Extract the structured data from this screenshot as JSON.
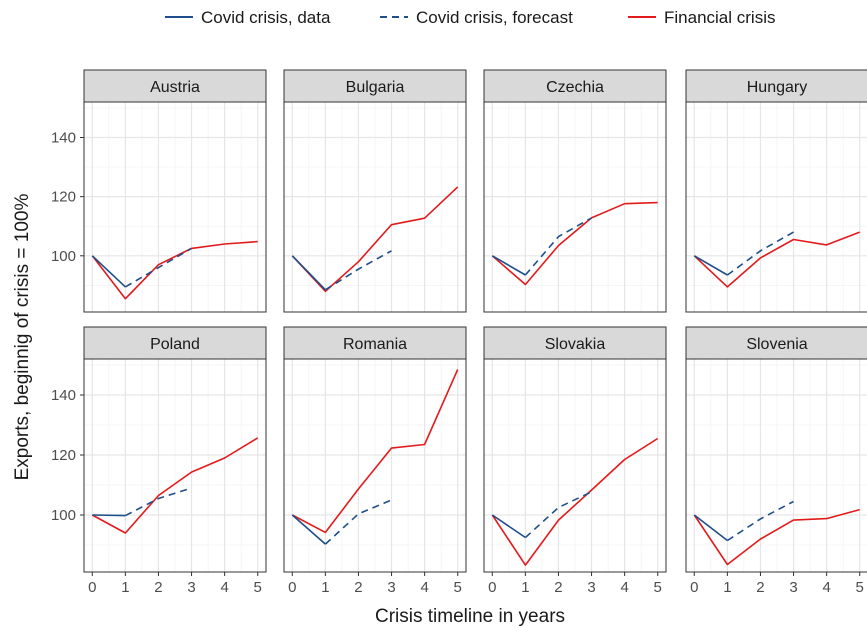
{
  "chart_data": {
    "type": "line",
    "xlabel": "Crisis timeline in years",
    "ylabel": "Exports, beginnig of crisis = 100%",
    "x_ticks": [
      0,
      1,
      2,
      3,
      4,
      5
    ],
    "y_ticks": [
      100,
      120,
      140
    ],
    "xlim": [
      -0.25,
      5.25
    ],
    "ylim": [
      81,
      152
    ],
    "grid": true,
    "legend_position": "top",
    "legend": [
      {
        "key": "data",
        "label": "Covid crisis, data",
        "color": "#1f4e8c",
        "dash": "solid"
      },
      {
        "key": "forecast",
        "label": "Covid crisis, forecast",
        "color": "#1f4e8c",
        "dash": "dashed"
      },
      {
        "key": "financial",
        "label": "Financial crisis",
        "color": "#e31a1c",
        "dash": "solid"
      }
    ],
    "panels": [
      {
        "name": "Austria",
        "data": {
          "x": [
            0,
            1
          ],
          "y": [
            100,
            89.5
          ]
        },
        "forecast": {
          "x": [
            1,
            2,
            3
          ],
          "y": [
            89.5,
            96,
            102.5
          ]
        },
        "financial": {
          "x": [
            0,
            1,
            2,
            3,
            4,
            5
          ],
          "y": [
            100,
            85.5,
            97,
            102.5,
            104,
            104.8
          ]
        }
      },
      {
        "name": "Bulgaria",
        "data": {
          "x": [
            0,
            1
          ],
          "y": [
            100,
            88.5
          ]
        },
        "forecast": {
          "x": [
            1,
            2,
            3
          ],
          "y": [
            88.5,
            95.5,
            101.7
          ]
        },
        "financial": {
          "x": [
            0,
            1,
            2,
            3,
            4,
            5
          ],
          "y": [
            100,
            88,
            98,
            110.5,
            112.7,
            123.3
          ]
        }
      },
      {
        "name": "Czechia",
        "data": {
          "x": [
            0,
            1
          ],
          "y": [
            100,
            93.5
          ]
        },
        "forecast": {
          "x": [
            1,
            2,
            3
          ],
          "y": [
            93.5,
            106.5,
            112.8
          ]
        },
        "financial": {
          "x": [
            0,
            1,
            2,
            3,
            4,
            5
          ],
          "y": [
            100,
            90.3,
            103.5,
            112.8,
            117.6,
            118
          ]
        }
      },
      {
        "name": "Hungary",
        "data": {
          "x": [
            0,
            1
          ],
          "y": [
            100,
            93.5
          ]
        },
        "forecast": {
          "x": [
            1,
            2,
            3
          ],
          "y": [
            93.5,
            101.7,
            108
          ]
        },
        "financial": {
          "x": [
            0,
            1,
            2,
            3,
            4,
            5
          ],
          "y": [
            100,
            89.5,
            99.3,
            105.5,
            103.7,
            108
          ]
        }
      },
      {
        "name": "Poland",
        "data": {
          "x": [
            0,
            1
          ],
          "y": [
            100,
            99.8
          ]
        },
        "forecast": {
          "x": [
            1,
            2,
            3
          ],
          "y": [
            99.8,
            105.5,
            109
          ]
        },
        "financial": {
          "x": [
            0,
            1,
            2,
            3,
            4,
            5
          ],
          "y": [
            100,
            94,
            106.5,
            114.3,
            119,
            125.7
          ]
        }
      },
      {
        "name": "Romania",
        "data": {
          "x": [
            0,
            1
          ],
          "y": [
            100,
            90.3
          ]
        },
        "forecast": {
          "x": [
            1,
            2,
            3
          ],
          "y": [
            90.3,
            100.4,
            105
          ]
        },
        "financial": {
          "x": [
            0,
            1,
            2,
            3,
            4,
            5
          ],
          "y": [
            100,
            94.2,
            108.7,
            122.3,
            123.5,
            148.5
          ]
        }
      },
      {
        "name": "Slovakia",
        "data": {
          "x": [
            0,
            1
          ],
          "y": [
            100,
            92.5
          ]
        },
        "forecast": {
          "x": [
            1,
            2,
            3
          ],
          "y": [
            92.5,
            102.5,
            107.7
          ]
        },
        "financial": {
          "x": [
            0,
            1,
            2,
            3,
            4,
            5
          ],
          "y": [
            100,
            83.3,
            98.3,
            108.3,
            118.5,
            125.5
          ]
        }
      },
      {
        "name": "Slovenia",
        "data": {
          "x": [
            0,
            1
          ],
          "y": [
            100,
            91.5
          ]
        },
        "forecast": {
          "x": [
            1,
            2,
            3
          ],
          "y": [
            91.5,
            98.7,
            104.5
          ]
        },
        "financial": {
          "x": [
            0,
            1,
            2,
            3,
            4,
            5
          ],
          "y": [
            100,
            83.5,
            92,
            98.3,
            98.8,
            101.8
          ]
        }
      }
    ]
  }
}
